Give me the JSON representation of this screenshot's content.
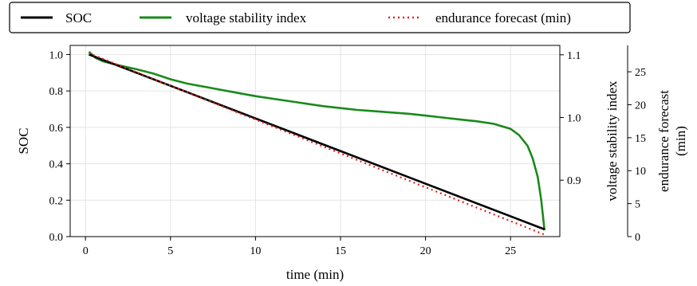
{
  "chart_data": {
    "type": "line",
    "x": [
      0.2,
      1,
      2,
      3,
      4,
      5,
      6,
      7,
      8,
      9,
      10,
      11,
      12,
      13,
      14,
      15,
      16,
      17,
      18,
      19,
      20,
      21,
      22,
      23,
      24,
      25,
      25.5,
      26,
      26.3,
      26.6,
      26.8,
      27.0
    ],
    "series": [
      {
        "name": "SOC",
        "axis": "left",
        "color": "#000000",
        "style": "solid",
        "x": [
          0.2,
          27.0
        ],
        "values": [
          1.0,
          0.04
        ]
      },
      {
        "name": "voltage stability index",
        "axis": "right1",
        "color": "#1a8a1a",
        "style": "solid",
        "x": [
          0.2,
          0.6,
          1,
          2,
          3,
          4,
          5,
          6,
          7,
          8,
          9,
          10,
          11,
          12,
          13,
          14,
          15,
          16,
          17,
          18,
          19,
          20,
          21,
          22,
          23,
          24,
          25,
          25.5,
          26,
          26.3,
          26.6,
          26.8,
          27.0
        ],
        "values": [
          1.105,
          1.095,
          1.09,
          1.083,
          1.077,
          1.07,
          1.061,
          1.054,
          1.049,
          1.044,
          1.039,
          1.034,
          1.03,
          1.026,
          1.022,
          1.018,
          1.015,
          1.012,
          1.01,
          1.008,
          1.006,
          1.003,
          1.0,
          0.997,
          0.994,
          0.99,
          0.982,
          0.972,
          0.955,
          0.935,
          0.905,
          0.87,
          0.82
        ]
      },
      {
        "name": "endurance forecast (min)",
        "axis": "right2",
        "color": "#e02020",
        "style": "dotted",
        "x": [
          0.2,
          27.0
        ],
        "values": [
          27.8,
          0.3
        ]
      }
    ],
    "xlabel": "time (min)",
    "ylabel_left": "SOC",
    "ylabel_right1": "voltage stability index",
    "ylabel_right2_lines": [
      "endurance forecast",
      "(min)"
    ],
    "xlim": [
      -0.9,
      27.9
    ],
    "ylim_left": [
      0.0,
      1.05
    ],
    "ylim_right1": [
      0.81,
      1.115
    ],
    "ylim_right2": [
      0,
      29
    ],
    "xticks": [
      "0",
      "5",
      "10",
      "15",
      "20",
      "25"
    ],
    "xtick_values": [
      0,
      5,
      10,
      15,
      20,
      25
    ],
    "yticks_left": [
      "0.0",
      "0.2",
      "0.4",
      "0.6",
      "0.8",
      "1.0"
    ],
    "ytick_values_left": [
      0.0,
      0.2,
      0.4,
      0.6,
      0.8,
      1.0
    ],
    "yticks_right1": [
      "0.9",
      "1.0",
      "1.1"
    ],
    "ytick_values_right1": [
      0.9,
      1.0,
      1.1
    ],
    "yticks_right2": [
      "0",
      "5",
      "10",
      "15",
      "20",
      "25"
    ],
    "ytick_values_right2": [
      0,
      5,
      10,
      15,
      20,
      25
    ],
    "grid": true,
    "legend_position": "top"
  }
}
